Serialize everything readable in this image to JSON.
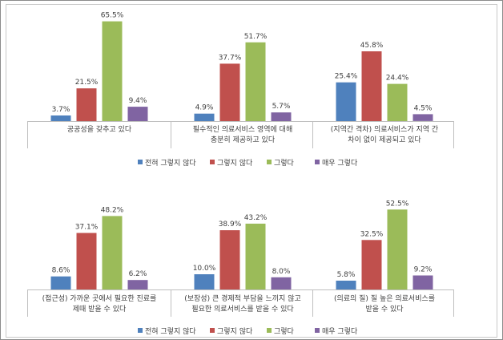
{
  "chart_data": {
    "type": "bar",
    "series": [
      {
        "name": "전혀 그렇지 않다",
        "color": "#4f81bd"
      },
      {
        "name": "그렇지 않다",
        "color": "#c0504d"
      },
      {
        "name": "그렇다",
        "color": "#9bbb59"
      },
      {
        "name": "매우 그렇다",
        "color": "#8064a2"
      }
    ],
    "panels": [
      {
        "categories": [
          {
            "label": [
              "공공성을 갖추고 있다"
            ],
            "values": [
              3.7,
              21.5,
              65.5,
              9.4
            ]
          },
          {
            "label": [
              "필수적인 의료서비스 영역에 대해",
              "충분히 제공하고 있다"
            ],
            "values": [
              4.9,
              37.7,
              51.7,
              5.7
            ]
          },
          {
            "label": [
              "(지역간 격차) 의료서비스가 지역 간",
              "차이 없이 제공되고 있다"
            ],
            "values": [
              25.4,
              45.8,
              24.4,
              4.5
            ]
          }
        ]
      },
      {
        "categories": [
          {
            "label": [
              "(접근성) 가까운 곳에서 필요한 진료를",
              "제때 받을 수 있다"
            ],
            "values": [
              8.6,
              37.1,
              48.2,
              6.2
            ]
          },
          {
            "label": [
              "(보장성) 큰 경제적 부담을 느끼지 않고",
              "필요한 의료서비스를 받을 수 있다"
            ],
            "values": [
              10.0,
              38.9,
              43.2,
              8.0
            ]
          },
          {
            "label": [
              "(의료의 질) 질 높은 의료서비스를",
              "받을 수 있다"
            ],
            "values": [
              5.8,
              32.5,
              52.5,
              9.2
            ]
          }
        ]
      }
    ]
  }
}
